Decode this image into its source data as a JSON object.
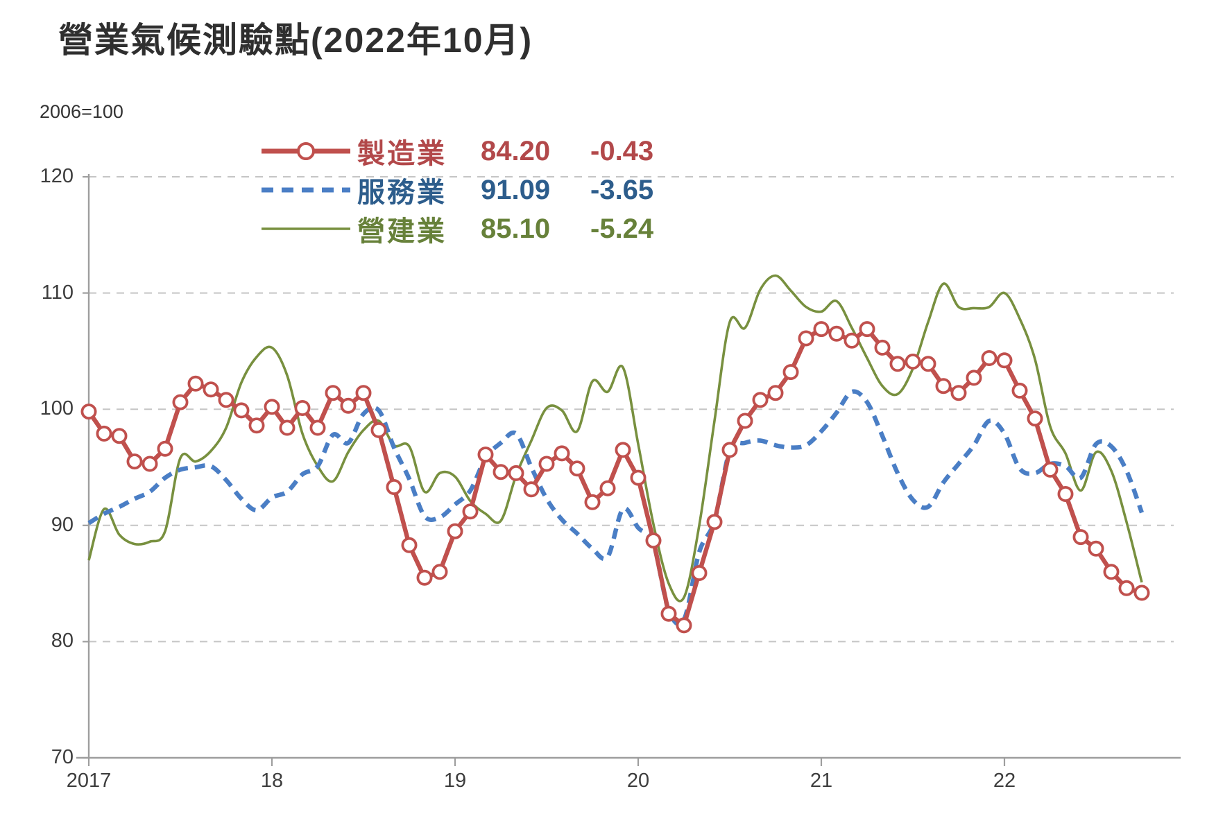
{
  "title": "營業氣候測驗點(2022年10月)",
  "axis_note": "2006=100",
  "legend": {
    "items": [
      {
        "label": "製造業",
        "value": "84.20",
        "change": "-0.43",
        "marker": "solid-line-with-circle",
        "line_color": "#c0504d",
        "text_color": "#b2484a"
      },
      {
        "label": "服務業",
        "value": "91.09",
        "change": "-3.65",
        "marker": "dashed-line",
        "line_color": "#4a7ec5",
        "text_color": "#2d5d8c"
      },
      {
        "label": "營建業",
        "value": "85.10",
        "change": "-5.24",
        "marker": "solid-line",
        "line_color": "#78903f",
        "text_color": "#67813a"
      }
    ]
  },
  "chart_data": {
    "type": "line",
    "title": "營業氣候測驗點(2022年10月)",
    "y_axis_note": "2006=100",
    "ylim": [
      70,
      120
    ],
    "y_ticks": [
      70,
      80,
      90,
      100,
      110,
      120
    ],
    "x_tick_labels": [
      "2017",
      "18",
      "19",
      "20",
      "21",
      "22"
    ],
    "x_tick_month_index": [
      0,
      12,
      24,
      36,
      48,
      60
    ],
    "months_start": "2017-01",
    "months_end": "2022-10",
    "grid": "horizontal-dashed",
    "legend_position": "top-center",
    "series": [
      {
        "name": "製造業",
        "style": "solid-with-circle-markers",
        "color": "#c0504d",
        "latest": 84.2,
        "change": -0.43,
        "values": [
          99.8,
          97.9,
          97.7,
          95.5,
          95.3,
          96.6,
          100.6,
          102.2,
          101.7,
          100.8,
          99.9,
          98.6,
          100.2,
          98.4,
          100.1,
          98.4,
          101.4,
          100.3,
          101.4,
          98.2,
          93.3,
          88.3,
          85.5,
          86.0,
          89.5,
          91.2,
          96.1,
          94.6,
          94.5,
          93.1,
          95.3,
          96.2,
          94.9,
          92.0,
          93.2,
          96.5,
          94.1,
          88.7,
          82.4,
          81.4,
          85.9,
          90.3,
          96.5,
          99.0,
          100.8,
          101.4,
          103.2,
          106.1,
          106.9,
          106.5,
          105.9,
          106.9,
          105.3,
          103.9,
          104.1,
          103.9,
          102.0,
          101.4,
          102.7,
          104.4,
          104.2,
          101.6,
          99.2,
          94.8,
          92.7,
          89.0,
          88.0,
          86.0,
          84.6,
          84.2
        ]
      },
      {
        "name": "服務業",
        "style": "dashed",
        "color": "#4a7ec5",
        "latest": 91.09,
        "change": -3.65,
        "values": [
          90.2,
          91.0,
          91.6,
          92.3,
          92.9,
          94.1,
          94.8,
          95.0,
          95.1,
          93.9,
          92.3,
          91.3,
          92.4,
          92.9,
          94.4,
          95.1,
          97.8,
          97.1,
          99.6,
          99.9,
          96.7,
          94.0,
          90.8,
          90.7,
          91.8,
          93.0,
          95.8,
          97.1,
          97.9,
          95.0,
          92.3,
          90.5,
          89.3,
          88.0,
          87.3,
          91.4,
          89.8,
          88.4,
          82.7,
          81.9,
          87.7,
          90.4,
          96.4,
          97.1,
          97.3,
          96.9,
          96.7,
          96.9,
          98.1,
          99.7,
          101.5,
          100.6,
          97.7,
          94.5,
          92.2,
          91.6,
          93.7,
          95.3,
          96.9,
          99.0,
          97.9,
          94.9,
          94.5,
          95.3,
          95.1,
          94.1,
          97.0,
          96.8,
          94.7,
          91.1
        ]
      },
      {
        "name": "營建業",
        "style": "solid",
        "color": "#78903f",
        "latest": 85.1,
        "change": -5.24,
        "values": [
          87.0,
          91.4,
          89.2,
          88.4,
          88.6,
          89.5,
          95.8,
          95.5,
          96.4,
          98.4,
          102.3,
          104.5,
          105.3,
          102.9,
          97.9,
          95.1,
          93.8,
          96.3,
          98.2,
          99.0,
          96.9,
          96.8,
          92.9,
          94.5,
          94.2,
          92.1,
          91.0,
          90.4,
          94.3,
          97.3,
          100.1,
          99.9,
          98.1,
          102.4,
          101.5,
          103.6,
          97.0,
          90.1,
          85.0,
          83.8,
          90.0,
          99.0,
          107.5,
          107.0,
          110.3,
          111.5,
          110.2,
          108.8,
          108.4,
          109.3,
          107.0,
          104.4,
          102.0,
          101.3,
          103.5,
          107.5,
          110.8,
          108.8,
          108.7,
          108.8,
          110.0,
          107.8,
          104.3,
          98.5,
          96.2,
          93.0,
          96.3,
          94.7,
          90.3,
          85.1
        ]
      }
    ]
  }
}
